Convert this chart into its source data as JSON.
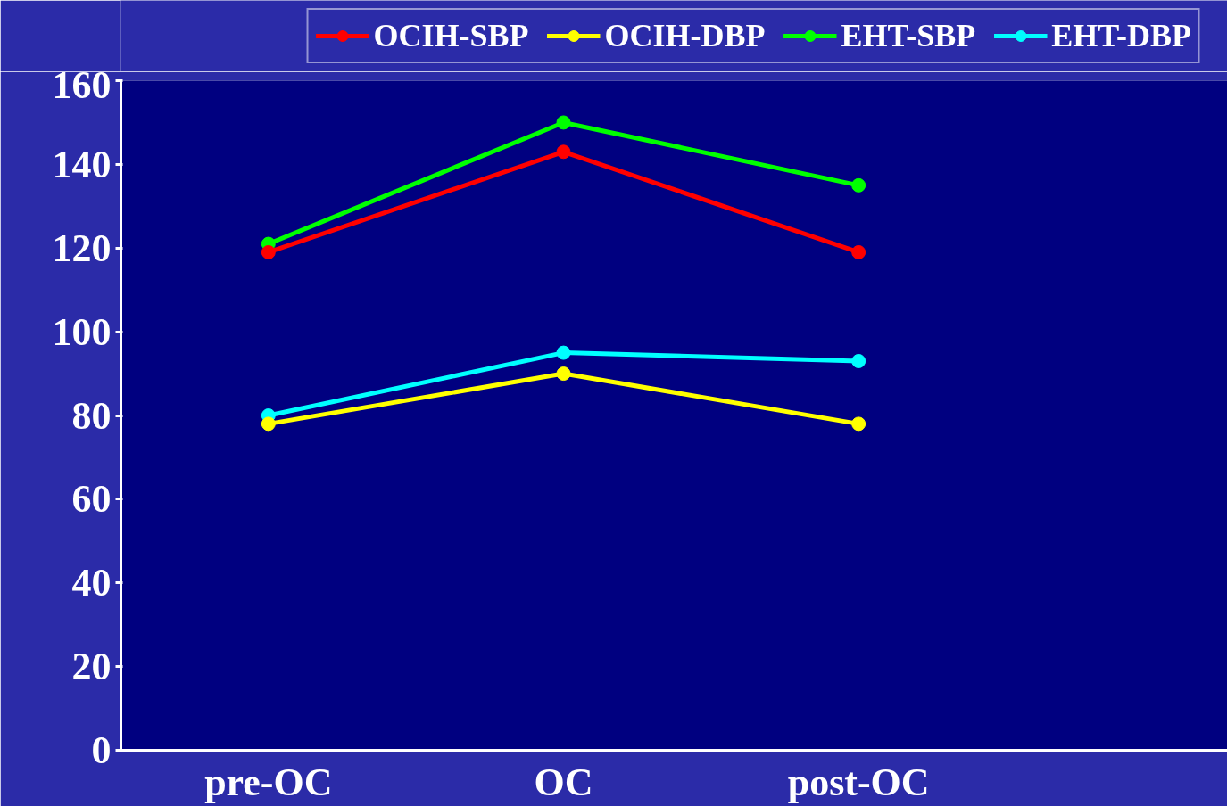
{
  "chart_data": {
    "type": "line",
    "categories": [
      "pre-OC",
      "OC",
      "post-OC"
    ],
    "series": [
      {
        "name": "OCIH-SBP",
        "color": "#ff0000",
        "values": [
          119,
          143,
          119
        ]
      },
      {
        "name": "OCIH-DBP",
        "color": "#ffff00",
        "values": [
          78,
          90,
          78
        ]
      },
      {
        "name": "EHT-SBP",
        "color": "#00ff00",
        "values": [
          121,
          150,
          135
        ]
      },
      {
        "name": "EHT-DBP",
        "color": "#00ffff",
        "values": [
          80,
          95,
          93
        ]
      }
    ],
    "ylim": [
      0,
      160
    ],
    "yticks": [
      0,
      20,
      40,
      60,
      80,
      100,
      120,
      140,
      160
    ],
    "grid": false,
    "legend": "top right",
    "marker": "circle",
    "line_style": "solid"
  }
}
